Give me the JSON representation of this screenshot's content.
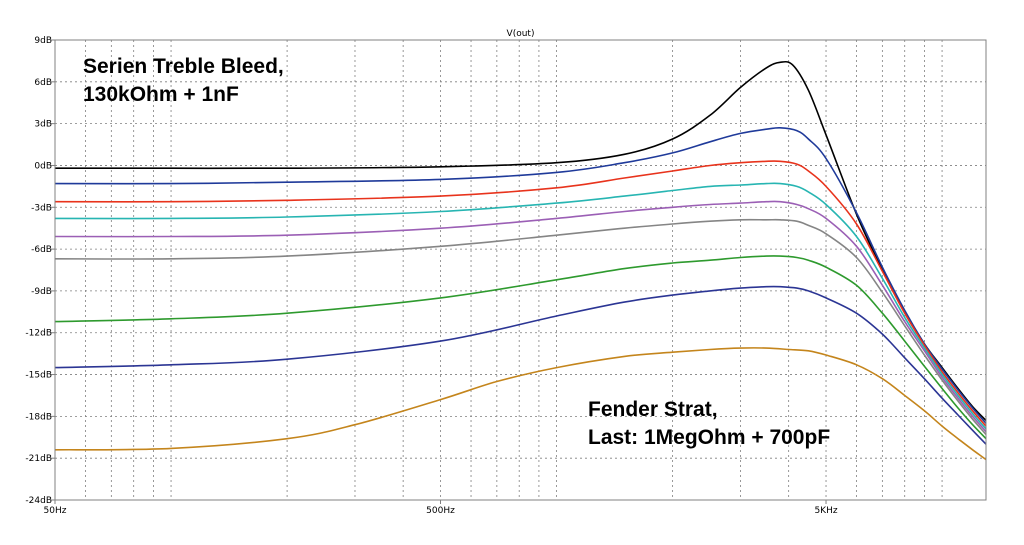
{
  "chart_data": {
    "type": "line",
    "title": "V(out)",
    "xscale": "log",
    "xlim": [
      50,
      13000
    ],
    "ylim": [
      -24,
      9
    ],
    "grid": true,
    "x_ticks": [
      {
        "value": 50,
        "label": "50Hz"
      },
      {
        "value": 500,
        "label": "500Hz"
      },
      {
        "value": 5000,
        "label": "5KHz"
      }
    ],
    "y_ticks": [
      {
        "value": 9,
        "label": "9dB"
      },
      {
        "value": 6,
        "label": "6dB"
      },
      {
        "value": 3,
        "label": "3dB"
      },
      {
        "value": 0,
        "label": "0dB"
      },
      {
        "value": -3,
        "label": "-3dB"
      },
      {
        "value": -6,
        "label": "-6dB"
      },
      {
        "value": -9,
        "label": "-9dB"
      },
      {
        "value": -12,
        "label": "-12dB"
      },
      {
        "value": -15,
        "label": "-15dB"
      },
      {
        "value": -18,
        "label": "-18dB"
      },
      {
        "value": -21,
        "label": "-21dB"
      },
      {
        "value": -24,
        "label": "-24dB"
      }
    ],
    "annotations": [
      {
        "lines": [
          "Serien Treble Bleed,",
          "130kOhm + 1nF"
        ],
        "position": "top-left"
      },
      {
        "lines": [
          "Fender Strat,",
          "Last: 1MegOhm + 700pF"
        ],
        "position": "bottom-right"
      }
    ],
    "series": [
      {
        "color": "#000000",
        "points": [
          [
            50,
            -0.2
          ],
          [
            100,
            -0.2
          ],
          [
            200,
            -0.2
          ],
          [
            500,
            -0.1
          ],
          [
            1000,
            0.2
          ],
          [
            1500,
            0.8
          ],
          [
            2000,
            1.9
          ],
          [
            2500,
            3.6
          ],
          [
            3000,
            5.6
          ],
          [
            3500,
            7.0
          ],
          [
            3800,
            7.4
          ],
          [
            4100,
            7.2
          ],
          [
            4500,
            5.4
          ],
          [
            5000,
            2.2
          ],
          [
            6000,
            -3.5
          ],
          [
            7000,
            -7.5
          ],
          [
            8000,
            -10.5
          ],
          [
            9000,
            -12.8
          ],
          [
            10000,
            -14.5
          ],
          [
            11000,
            -16.0
          ],
          [
            12000,
            -17.3
          ],
          [
            13000,
            -18.3
          ]
        ]
      },
      {
        "color": "#1f3a9a",
        "points": [
          [
            50,
            -1.3
          ],
          [
            100,
            -1.3
          ],
          [
            200,
            -1.2
          ],
          [
            500,
            -1.0
          ],
          [
            1000,
            -0.5
          ],
          [
            1500,
            0.2
          ],
          [
            2000,
            0.9
          ],
          [
            2500,
            1.7
          ],
          [
            3000,
            2.3
          ],
          [
            3500,
            2.6
          ],
          [
            3800,
            2.7
          ],
          [
            4200,
            2.5
          ],
          [
            4500,
            1.9
          ],
          [
            5000,
            0.5
          ],
          [
            6000,
            -3.4
          ],
          [
            7000,
            -7.3
          ],
          [
            8000,
            -10.4
          ],
          [
            9000,
            -12.8
          ],
          [
            10000,
            -14.6
          ],
          [
            11000,
            -16.1
          ],
          [
            12000,
            -17.4
          ],
          [
            13000,
            -18.5
          ]
        ]
      },
      {
        "color": "#e8331c",
        "points": [
          [
            50,
            -2.6
          ],
          [
            100,
            -2.6
          ],
          [
            200,
            -2.5
          ],
          [
            500,
            -2.2
          ],
          [
            1000,
            -1.6
          ],
          [
            1500,
            -0.9
          ],
          [
            2000,
            -0.4
          ],
          [
            2500,
            0.0
          ],
          [
            3000,
            0.2
          ],
          [
            3500,
            0.3
          ],
          [
            3800,
            0.3
          ],
          [
            4200,
            0.1
          ],
          [
            4500,
            -0.4
          ],
          [
            5000,
            -1.5
          ],
          [
            6000,
            -4.2
          ],
          [
            7000,
            -7.6
          ],
          [
            8000,
            -10.6
          ],
          [
            9000,
            -12.9
          ],
          [
            10000,
            -14.8
          ],
          [
            11000,
            -16.3
          ],
          [
            12000,
            -17.6
          ],
          [
            13000,
            -18.7
          ]
        ]
      },
      {
        "color": "#27b5b2",
        "points": [
          [
            50,
            -3.8
          ],
          [
            100,
            -3.8
          ],
          [
            200,
            -3.7
          ],
          [
            500,
            -3.3
          ],
          [
            1000,
            -2.7
          ],
          [
            1500,
            -2.2
          ],
          [
            2000,
            -1.8
          ],
          [
            2500,
            -1.5
          ],
          [
            3000,
            -1.4
          ],
          [
            3500,
            -1.3
          ],
          [
            3800,
            -1.3
          ],
          [
            4200,
            -1.5
          ],
          [
            4500,
            -1.9
          ],
          [
            5000,
            -2.8
          ],
          [
            6000,
            -5.1
          ],
          [
            7000,
            -8.1
          ],
          [
            8000,
            -10.9
          ],
          [
            9000,
            -13.1
          ],
          [
            10000,
            -15.0
          ],
          [
            11000,
            -16.5
          ],
          [
            12000,
            -17.8
          ],
          [
            13000,
            -18.9
          ]
        ]
      },
      {
        "color": "#9b5fb5",
        "points": [
          [
            50,
            -5.1
          ],
          [
            100,
            -5.1
          ],
          [
            200,
            -5.0
          ],
          [
            500,
            -4.5
          ],
          [
            1000,
            -3.8
          ],
          [
            1500,
            -3.3
          ],
          [
            2000,
            -3.0
          ],
          [
            2500,
            -2.8
          ],
          [
            3000,
            -2.7
          ],
          [
            3500,
            -2.6
          ],
          [
            3800,
            -2.6
          ],
          [
            4200,
            -2.8
          ],
          [
            4500,
            -3.1
          ],
          [
            5000,
            -3.8
          ],
          [
            6000,
            -5.8
          ],
          [
            7000,
            -8.6
          ],
          [
            8000,
            -11.2
          ],
          [
            9000,
            -13.3
          ],
          [
            10000,
            -15.2
          ],
          [
            11000,
            -16.7
          ],
          [
            12000,
            -18.0
          ],
          [
            13000,
            -19.1
          ]
        ]
      },
      {
        "color": "#858585",
        "points": [
          [
            50,
            -6.7
          ],
          [
            100,
            -6.7
          ],
          [
            200,
            -6.5
          ],
          [
            500,
            -5.8
          ],
          [
            1000,
            -5.0
          ],
          [
            1500,
            -4.5
          ],
          [
            2000,
            -4.2
          ],
          [
            2500,
            -4.0
          ],
          [
            3000,
            -3.9
          ],
          [
            3500,
            -3.9
          ],
          [
            3800,
            -3.9
          ],
          [
            4200,
            -4.0
          ],
          [
            4500,
            -4.3
          ],
          [
            5000,
            -4.9
          ],
          [
            6000,
            -6.6
          ],
          [
            7000,
            -9.1
          ],
          [
            8000,
            -11.5
          ],
          [
            9000,
            -13.6
          ],
          [
            10000,
            -15.4
          ],
          [
            11000,
            -16.9
          ],
          [
            12000,
            -18.2
          ],
          [
            13000,
            -19.3
          ]
        ]
      },
      {
        "color": "#2e9a2e",
        "points": [
          [
            50,
            -11.2
          ],
          [
            100,
            -11.0
          ],
          [
            200,
            -10.6
          ],
          [
            500,
            -9.5
          ],
          [
            1000,
            -8.2
          ],
          [
            1500,
            -7.4
          ],
          [
            2000,
            -7.0
          ],
          [
            2500,
            -6.8
          ],
          [
            3000,
            -6.6
          ],
          [
            3500,
            -6.5
          ],
          [
            3800,
            -6.5
          ],
          [
            4200,
            -6.6
          ],
          [
            4500,
            -6.8
          ],
          [
            5000,
            -7.3
          ],
          [
            6000,
            -8.6
          ],
          [
            7000,
            -10.6
          ],
          [
            8000,
            -12.6
          ],
          [
            9000,
            -14.4
          ],
          [
            10000,
            -16.0
          ],
          [
            11000,
            -17.4
          ],
          [
            12000,
            -18.6
          ],
          [
            13000,
            -19.6
          ]
        ]
      },
      {
        "color": "#2b3594",
        "points": [
          [
            50,
            -14.5
          ],
          [
            100,
            -14.3
          ],
          [
            200,
            -13.9
          ],
          [
            500,
            -12.6
          ],
          [
            1000,
            -10.8
          ],
          [
            1500,
            -9.8
          ],
          [
            2000,
            -9.3
          ],
          [
            2500,
            -9.0
          ],
          [
            3000,
            -8.8
          ],
          [
            3500,
            -8.7
          ],
          [
            3800,
            -8.7
          ],
          [
            4200,
            -8.8
          ],
          [
            4500,
            -9.0
          ],
          [
            5000,
            -9.5
          ],
          [
            6000,
            -10.6
          ],
          [
            7000,
            -12.1
          ],
          [
            8000,
            -13.8
          ],
          [
            9000,
            -15.3
          ],
          [
            10000,
            -16.7
          ],
          [
            11000,
            -17.9
          ],
          [
            12000,
            -19.0
          ],
          [
            13000,
            -20.0
          ]
        ]
      },
      {
        "color": "#c4851c",
        "points": [
          [
            50,
            -20.4
          ],
          [
            100,
            -20.3
          ],
          [
            200,
            -19.6
          ],
          [
            300,
            -18.6
          ],
          [
            500,
            -16.8
          ],
          [
            700,
            -15.5
          ],
          [
            1000,
            -14.5
          ],
          [
            1500,
            -13.7
          ],
          [
            2000,
            -13.4
          ],
          [
            2500,
            -13.2
          ],
          [
            3000,
            -13.1
          ],
          [
            3500,
            -13.1
          ],
          [
            4000,
            -13.2
          ],
          [
            4500,
            -13.3
          ],
          [
            5000,
            -13.6
          ],
          [
            6000,
            -14.3
          ],
          [
            7000,
            -15.3
          ],
          [
            8000,
            -16.5
          ],
          [
            9000,
            -17.6
          ],
          [
            10000,
            -18.7
          ],
          [
            11000,
            -19.6
          ],
          [
            12000,
            -20.4
          ],
          [
            13000,
            -21.1
          ]
        ]
      }
    ]
  }
}
